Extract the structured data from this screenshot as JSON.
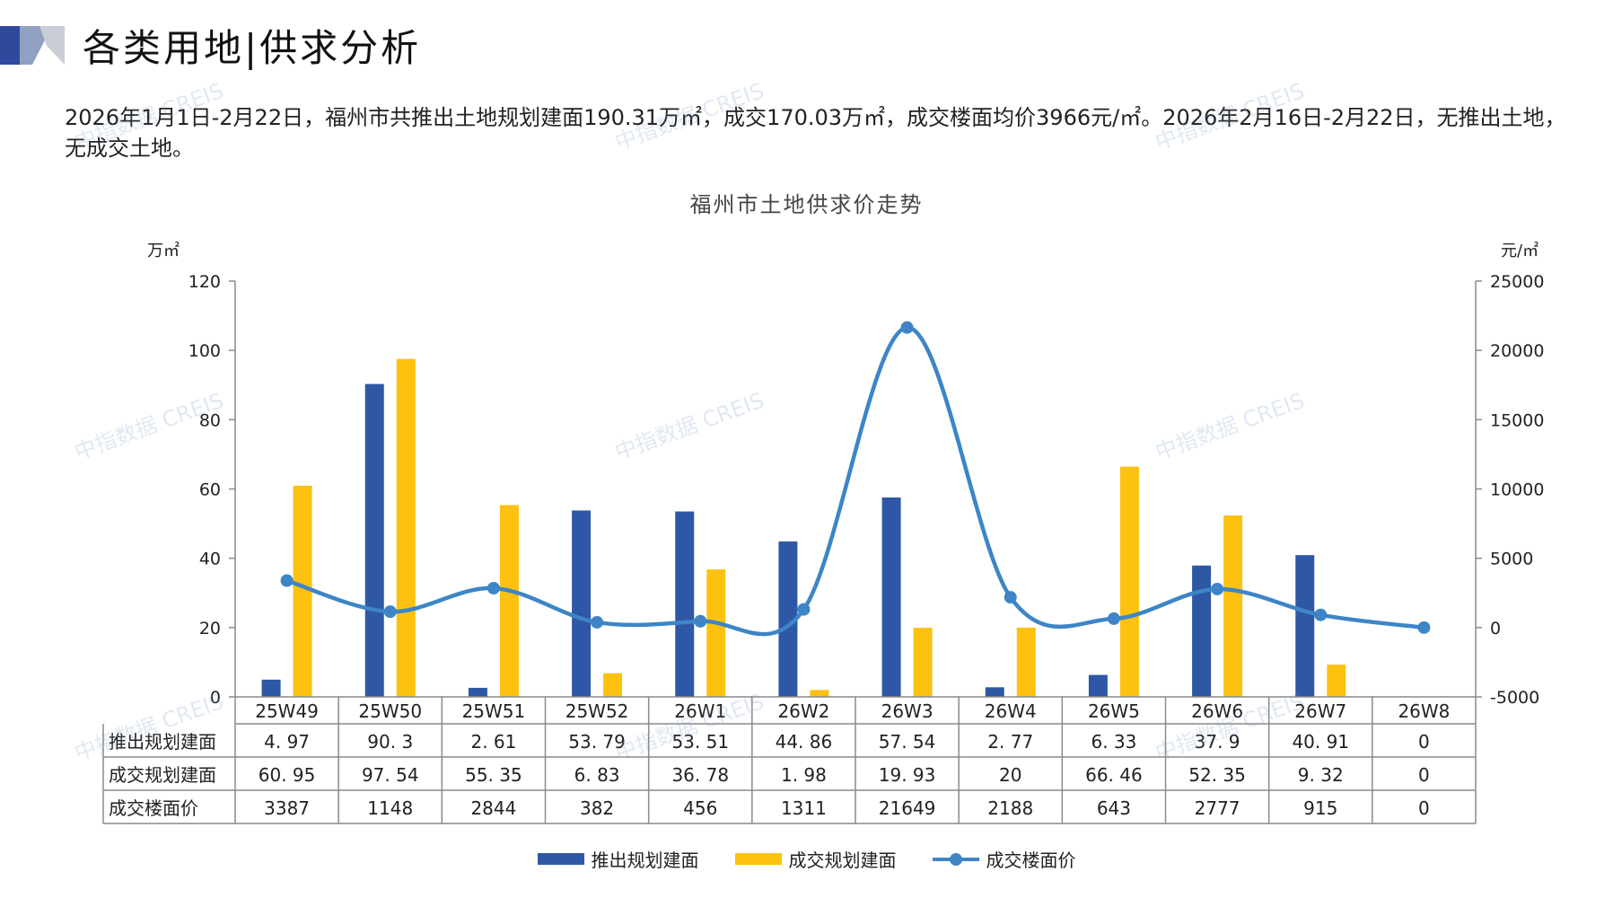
{
  "header": {
    "title": "各类用地|供求分析",
    "summary": "2026年1月1日-2月22日，福州市共推出土地规划建面190.31万㎡，成交170.03万㎡，成交楼面均价3966元/㎡。2026年2月16日-2月22日，无推出土地，无成交土地。"
  },
  "watermark_text": "中指数据 CREIS",
  "colors": {
    "supply": "#2e58a6",
    "deal": "#fdc20f",
    "price": "#3d85c6",
    "accent": "#2f4a9c"
  },
  "chart_data": {
    "type": "bar",
    "title": "福州市土地供求价走势",
    "ylabel_left": "万㎡",
    "ylabel_right": "元/㎡",
    "ylim_left": [
      0,
      120
    ],
    "yticks_left": [
      0,
      20,
      40,
      60,
      80,
      100,
      120
    ],
    "ylim_right": [
      -5000,
      25000
    ],
    "yticks_right": [
      -5000,
      0,
      5000,
      10000,
      15000,
      20000,
      25000
    ],
    "categories": [
      "25W49",
      "25W50",
      "25W51",
      "25W52",
      "26W1",
      "26W2",
      "26W3",
      "26W4",
      "26W5",
      "26W6",
      "26W7",
      "26W8"
    ],
    "series": [
      {
        "name": "推出规划建面",
        "type": "bar",
        "axis": "left",
        "values": [
          4.97,
          90.3,
          2.61,
          53.79,
          53.51,
          44.86,
          57.54,
          2.77,
          6.33,
          37.9,
          40.91,
          0
        ]
      },
      {
        "name": "成交规划建面",
        "type": "bar",
        "axis": "left",
        "values": [
          60.95,
          97.54,
          55.35,
          6.83,
          36.78,
          1.98,
          19.93,
          20,
          66.46,
          52.35,
          9.32,
          0
        ]
      },
      {
        "name": "成交楼面价",
        "type": "line",
        "axis": "right",
        "values": [
          3387,
          1148,
          2844,
          382,
          456,
          1311,
          21649,
          2188,
          643,
          2777,
          915,
          0
        ]
      }
    ],
    "table": {
      "row_labels": [
        "推出规划建面",
        "成交规划建面",
        "成交楼面价"
      ],
      "rows": [
        [
          "4. 97",
          "90. 3",
          "2. 61",
          "53. 79",
          "53. 51",
          "44. 86",
          "57. 54",
          "2. 77",
          "6. 33",
          "37. 9",
          "40. 91",
          "0"
        ],
        [
          "60. 95",
          "97. 54",
          "55. 35",
          "6. 83",
          "36. 78",
          "1. 98",
          "19. 93",
          "20",
          "66. 46",
          "52. 35",
          "9. 32",
          "0"
        ],
        [
          "3387",
          "1148",
          "2844",
          "382",
          "456",
          "1311",
          "21649",
          "2188",
          "643",
          "2777",
          "915",
          "0"
        ]
      ]
    },
    "legend_position": "bottom",
    "grid": false
  }
}
